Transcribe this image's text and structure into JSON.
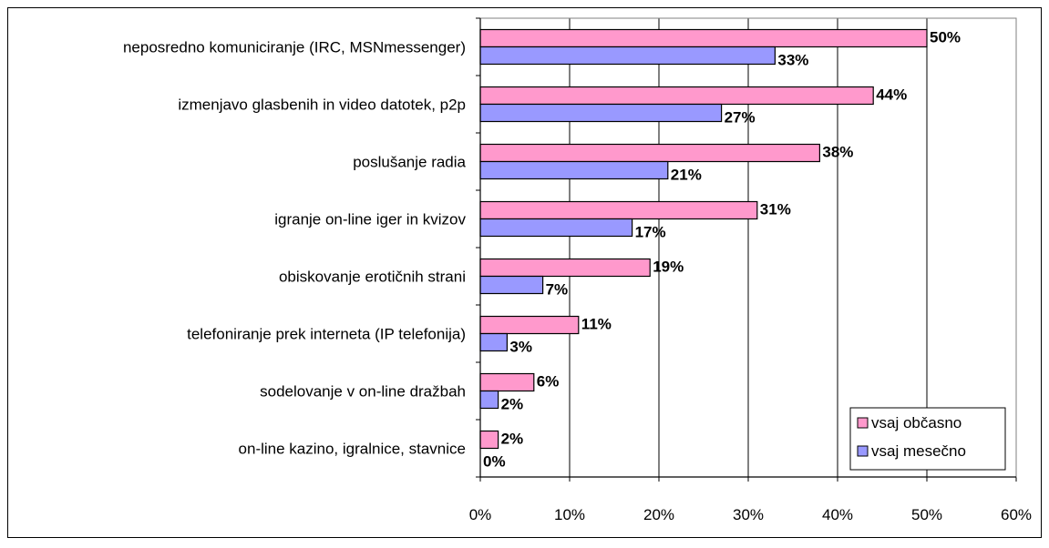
{
  "chart_data": {
    "type": "bar",
    "orientation": "horizontal",
    "categories": [
      "neposredno komuniciranje (IRC, MSNmessenger)",
      "izmenjavo glasbenih in video datotek, p2p",
      "poslušanje radia",
      "igranje on-line iger in kvizov",
      "obiskovanje erotičnih strani",
      "telefoniranje prek interneta (IP telefonija)",
      "sodelovanje v on-line dražbah",
      "on-line kazino, igralnice, stavnice"
    ],
    "series": [
      {
        "name": "vsaj občasno",
        "color": "#ff99cc",
        "values": [
          50,
          44,
          38,
          31,
          19,
          11,
          6,
          2
        ],
        "labels": [
          "50%",
          "44%",
          "38%",
          "31%",
          "19%",
          "11%",
          "6%",
          "2%"
        ]
      },
      {
        "name": "vsaj mesečno",
        "color": "#9999ff",
        "values": [
          33,
          27,
          21,
          17,
          7,
          3,
          2,
          0
        ],
        "labels": [
          "33%",
          "27%",
          "21%",
          "17%",
          "7%",
          "3%",
          "2%",
          "0%"
        ]
      }
    ],
    "xlim": [
      0,
      60
    ],
    "x_ticks": [
      "0%",
      "10%",
      "20%",
      "30%",
      "40%",
      "50%",
      "60%"
    ],
    "grid": true,
    "legend_position": "bottom-right",
    "title": "",
    "xlabel": "",
    "ylabel": ""
  }
}
